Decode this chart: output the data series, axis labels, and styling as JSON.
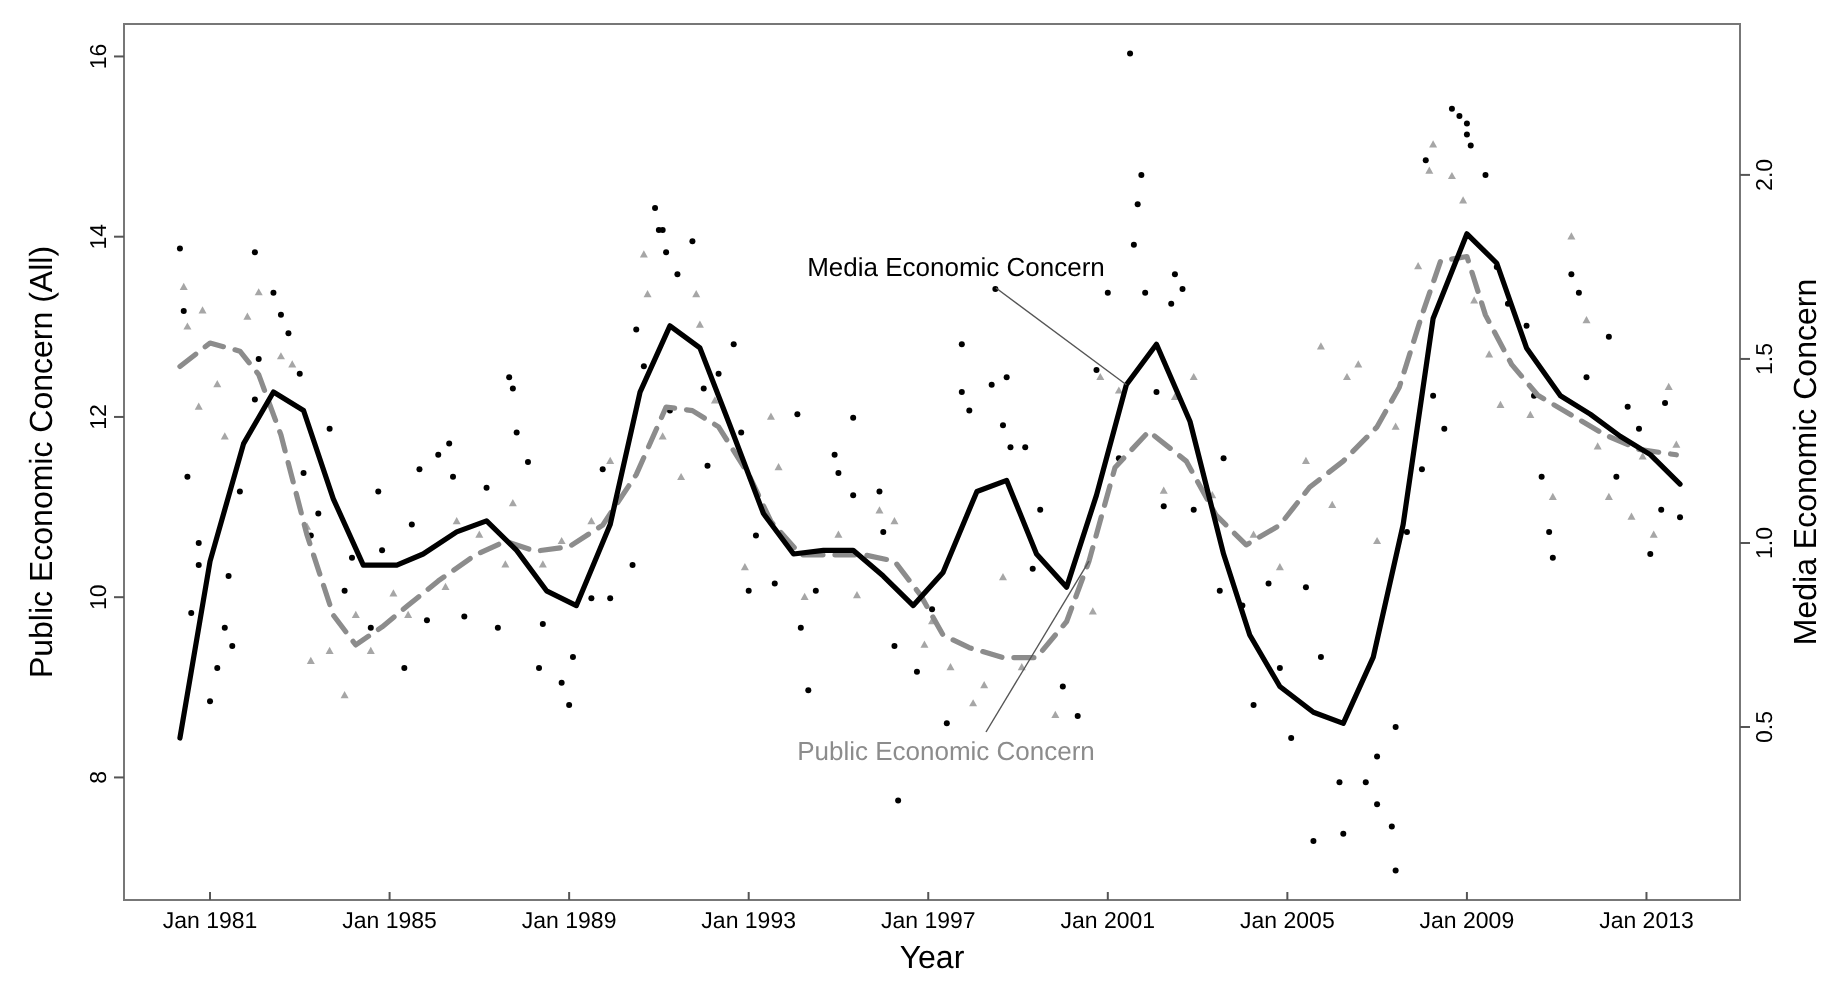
{
  "chart_data": {
    "type": "line",
    "xlabel": "Year",
    "ylabel": "Public Economic Concern (All)",
    "y2label": "Media Economic Concern",
    "xlim": [
      "1979-02",
      "2015-02"
    ],
    "xticks": [
      {
        "value": "1981-01",
        "label": "Jan 1981"
      },
      {
        "value": "1985-01",
        "label": "Jan 1985"
      },
      {
        "value": "1989-01",
        "label": "Jan 1989"
      },
      {
        "value": "1993-01",
        "label": "Jan 1993"
      },
      {
        "value": "1997-01",
        "label": "Jan 1997"
      },
      {
        "value": "2001-01",
        "label": "Jan 2001"
      },
      {
        "value": "2005-01",
        "label": "Jan 2005"
      },
      {
        "value": "2009-01",
        "label": "Jan 2009"
      },
      {
        "value": "2013-01",
        "label": "Jan 2013"
      }
    ],
    "ylim": [
      6.64,
      16.36
    ],
    "yticks": [
      8,
      10,
      12,
      14,
      16
    ],
    "y2lim": [
      0.03,
      2.41
    ],
    "y2ticks": [
      {
        "value": 0.5,
        "label": "0.5"
      },
      {
        "value": 1,
        "label": "1.0"
      },
      {
        "value": 1.5,
        "label": "1.5"
      },
      {
        "value": 2,
        "label": "2.0"
      }
    ],
    "series": [
      {
        "type": "scatter",
        "axis": "y",
        "marker": "triangle",
        "color": "#a6a6a6",
        "x": [
          "1980-06",
          "1980-07",
          "1980-10",
          "1980-11",
          "1981-03",
          "1981-05",
          "1981-11",
          "1982-02",
          "1982-08",
          "1982-11",
          "1983-03",
          "1983-04",
          "1983-09",
          "1984-01",
          "1984-04",
          "1984-08",
          "1985-02",
          "1985-06",
          "1986-04",
          "1986-07",
          "1987-01",
          "1987-08",
          "1987-10",
          "1988-06",
          "1988-11",
          "1989-07",
          "1989-12",
          "1990-09",
          "1990-10",
          "1991-02",
          "1991-07",
          "1991-11",
          "1991-12",
          "1992-04",
          "1992-12",
          "1993-07",
          "1993-09",
          "1994-04",
          "1995-01",
          "1995-06",
          "1995-12",
          "1996-04",
          "1996-12",
          "1997-02",
          "1997-07",
          "1998-01",
          "1998-04",
          "1998-09",
          "1999-02",
          "1999-11",
          "2000-09",
          "2000-11",
          "2001-04",
          "2002-04",
          "2002-07",
          "2002-12",
          "2003-05",
          "2004-04",
          "2004-11",
          "2005-06",
          "2005-10",
          "2006-01",
          "2006-05",
          "2006-08",
          "2007-01",
          "2007-06",
          "2007-12",
          "2008-03",
          "2008-04",
          "2008-09",
          "2008-12",
          "2009-03",
          "2009-07",
          "2009-10",
          "2010-06",
          "2010-12",
          "2011-05",
          "2011-09",
          "2011-12",
          "2012-03",
          "2012-09",
          "2012-12",
          "2013-03",
          "2013-07",
          "2013-09"
        ],
        "values": [
          13.44,
          13.0,
          12.11,
          13.18,
          12.36,
          11.78,
          13.11,
          13.38,
          12.67,
          12.58,
          10.78,
          9.29,
          9.4,
          8.91,
          9.8,
          9.4,
          10.04,
          9.8,
          10.11,
          10.84,
          10.69,
          10.36,
          11.04,
          10.36,
          10.62,
          10.84,
          11.51,
          13.8,
          13.36,
          11.78,
          11.33,
          13.36,
          13.02,
          12.18,
          10.33,
          12.0,
          11.44,
          10.0,
          10.69,
          10.02,
          10.96,
          10.84,
          9.47,
          9.73,
          9.22,
          8.82,
          9.02,
          10.22,
          9.22,
          8.69,
          9.84,
          12.44,
          12.29,
          11.18,
          12.22,
          12.44,
          11.13,
          10.69,
          10.33,
          11.51,
          12.78,
          11.02,
          12.44,
          12.58,
          10.62,
          11.89,
          13.67,
          14.73,
          15.02,
          14.67,
          14.4,
          13.29,
          12.69,
          12.13,
          12.02,
          11.11,
          14.0,
          13.07,
          11.67,
          11.11,
          10.89,
          11.56,
          10.69,
          12.33,
          11.69
        ]
      },
      {
        "type": "scatter",
        "axis": "y2",
        "marker": "circle",
        "color": "#000000",
        "x": [
          "1980-05",
          "1980-06",
          "1980-07",
          "1980-08",
          "1980-10",
          "1980-10",
          "1981-01",
          "1981-03",
          "1981-05",
          "1981-06",
          "1981-07",
          "1981-09",
          "1982-01",
          "1982-01",
          "1982-02",
          "1982-06",
          "1982-08",
          "1982-10",
          "1983-01",
          "1983-02",
          "1983-04",
          "1983-06",
          "1983-09",
          "1984-01",
          "1984-03",
          "1984-08",
          "1984-10",
          "1984-11",
          "1985-05",
          "1985-07",
          "1985-09",
          "1985-11",
          "1986-02",
          "1986-05",
          "1986-06",
          "1986-09",
          "1987-03",
          "1987-06",
          "1987-09",
          "1987-10",
          "1987-11",
          "1988-02",
          "1988-05",
          "1988-06",
          "1988-11",
          "1989-01",
          "1989-02",
          "1989-07",
          "1989-10",
          "1989-12",
          "1990-06",
          "1990-07",
          "1990-09",
          "1990-12",
          "1991-01",
          "1991-02",
          "1991-03",
          "1991-04",
          "1991-06",
          "1991-10",
          "1992-01",
          "1992-02",
          "1992-05",
          "1992-09",
          "1992-11",
          "1993-01",
          "1993-03",
          "1993-08",
          "1994-02",
          "1994-03",
          "1994-05",
          "1994-07",
          "1994-12",
          "1995-01",
          "1995-05",
          "1995-05",
          "1995-12",
          "1996-01",
          "1996-04",
          "1996-05",
          "1996-10",
          "1997-02",
          "1997-06",
          "1997-10",
          "1997-10",
          "1997-12",
          "1998-06",
          "1998-07",
          "1998-09",
          "1998-10",
          "1998-11",
          "1999-03",
          "1999-05",
          "1999-07",
          "2000-01",
          "2000-05",
          "2000-10",
          "2001-01",
          "2001-04",
          "2001-07",
          "2001-08",
          "2001-09",
          "2001-10",
          "2001-11",
          "2002-02",
          "2002-04",
          "2002-06",
          "2002-07",
          "2002-09",
          "2002-12",
          "2003-07",
          "2003-08",
          "2004-01",
          "2004-04",
          "2004-08",
          "2004-11",
          "2005-02",
          "2005-06",
          "2005-08",
          "2005-10",
          "2006-03",
          "2006-04",
          "2006-10",
          "2007-01",
          "2007-01",
          "2007-05",
          "2007-06",
          "2007-06",
          "2007-09",
          "2008-01",
          "2008-02",
          "2008-04",
          "2008-07",
          "2008-09",
          "2008-11",
          "2009-01",
          "2009-01",
          "2009-02",
          "2009-06",
          "2009-09",
          "2009-12",
          "2010-05",
          "2010-07",
          "2010-09",
          "2010-11",
          "2010-12",
          "2011-05",
          "2011-07",
          "2011-09",
          "2012-03",
          "2012-05",
          "2012-08",
          "2012-11",
          "2013-02",
          "2013-05",
          "2013-06",
          "2013-10"
        ],
        "values": [
          1.8,
          1.63,
          1.18,
          0.81,
          0.94,
          1.0,
          0.57,
          0.66,
          0.77,
          0.91,
          0.72,
          1.14,
          1.79,
          1.39,
          1.5,
          1.68,
          1.62,
          1.57,
          1.46,
          1.19,
          1.02,
          1.08,
          1.31,
          0.87,
          0.96,
          0.77,
          1.14,
          0.98,
          0.66,
          1.05,
          1.2,
          0.79,
          1.24,
          1.27,
          1.18,
          0.8,
          1.15,
          0.77,
          1.45,
          1.42,
          1.3,
          1.22,
          0.66,
          0.78,
          0.62,
          0.56,
          0.69,
          0.85,
          1.2,
          0.85,
          0.94,
          1.58,
          1.48,
          1.91,
          1.85,
          1.85,
          1.79,
          1.36,
          1.73,
          1.82,
          1.42,
          1.21,
          1.46,
          1.54,
          1.3,
          0.87,
          1.02,
          0.89,
          1.35,
          0.77,
          0.6,
          0.87,
          1.24,
          1.19,
          1.34,
          1.13,
          1.14,
          1.03,
          0.72,
          0.3,
          0.65,
          0.82,
          0.51,
          1.54,
          1.41,
          1.36,
          1.43,
          1.69,
          1.32,
          1.45,
          1.26,
          1.26,
          0.93,
          1.09,
          0.61,
          0.53,
          1.47,
          1.68,
          1.23,
          2.33,
          1.81,
          1.92,
          2.0,
          1.68,
          1.41,
          1.1,
          1.65,
          1.73,
          1.69,
          1.09,
          0.87,
          1.23,
          0.83,
          0.56,
          0.89,
          0.66,
          0.47,
          0.88,
          0.19,
          0.69,
          0.35,
          0.21,
          0.35,
          0.42,
          0.29,
          0.23,
          0.11,
          0.5,
          1.03,
          1.2,
          2.04,
          1.4,
          1.31,
          2.18,
          2.16,
          2.14,
          2.11,
          2.08,
          2.0,
          1.75,
          1.65,
          1.59,
          1.4,
          1.18,
          1.03,
          0.96,
          1.73,
          1.68,
          1.45,
          1.56,
          1.18,
          1.37,
          1.31,
          0.97,
          1.09,
          1.38,
          1.07
        ]
      },
      {
        "axis": "y",
        "name": "Public Economic Concern",
        "line_style": "dashed",
        "color": "#8c8c8c",
        "x": [
          "1980-05",
          "1981-01",
          "1981-09",
          "1982-02",
          "1982-08",
          "1983-03",
          "1983-10",
          "1984-04",
          "1984-11",
          "1985-06",
          "1986-02",
          "1986-12",
          "1987-08",
          "1988-04",
          "1989-01",
          "1989-10",
          "1990-07",
          "1991-03",
          "1991-10",
          "1992-05",
          "1993-01",
          "1993-07",
          "1994-03",
          "1994-11",
          "1995-08",
          "1996-04",
          "1996-11",
          "1997-05",
          "1997-12",
          "1998-09",
          "1999-06",
          "2000-02",
          "2000-08",
          "2001-03",
          "2001-12",
          "2002-10",
          "2003-06",
          "2004-02",
          "2004-11",
          "2005-07",
          "2006-04",
          "2007-01",
          "2007-07",
          "2008-01",
          "2008-06",
          "2009-01",
          "2009-06",
          "2010-01",
          "2010-08",
          "2011-05",
          "2012-02",
          "2012-11",
          "2013-09"
        ],
        "values": [
          12.56,
          12.82,
          12.73,
          12.47,
          11.8,
          10.69,
          9.8,
          9.47,
          9.67,
          9.91,
          10.18,
          10.47,
          10.62,
          10.51,
          10.56,
          10.8,
          11.36,
          12.11,
          12.07,
          11.89,
          11.36,
          10.84,
          10.47,
          10.47,
          10.47,
          10.4,
          10.02,
          9.58,
          9.44,
          9.33,
          9.33,
          9.73,
          10.4,
          11.44,
          11.84,
          11.51,
          10.91,
          10.58,
          10.8,
          11.22,
          11.51,
          11.89,
          12.33,
          13.13,
          13.73,
          13.78,
          13.13,
          12.58,
          12.24,
          12.02,
          11.8,
          11.64,
          11.58
        ]
      },
      {
        "axis": "y2",
        "name": "Media Economic Concern",
        "line_style": "solid",
        "color": "#000000",
        "x": [
          "1980-05",
          "1981-01",
          "1981-10",
          "1982-06",
          "1983-02",
          "1983-10",
          "1984-06",
          "1985-03",
          "1985-10",
          "1986-07",
          "1987-03",
          "1987-11",
          "1988-07",
          "1989-03",
          "1989-12",
          "1990-08",
          "1991-04",
          "1991-12",
          "1992-08",
          "1993-05",
          "1994-01",
          "1994-09",
          "1995-05",
          "1996-01",
          "1996-09",
          "1997-05",
          "1998-02",
          "1998-10",
          "1999-06",
          "2000-02",
          "2000-10",
          "2001-06",
          "2002-02",
          "2002-11",
          "2003-08",
          "2004-03",
          "2004-11",
          "2005-08",
          "2006-04",
          "2006-12",
          "2007-08",
          "2008-04",
          "2009-01",
          "2009-09",
          "2010-05",
          "2011-02",
          "2011-10",
          "2012-06",
          "2013-02",
          "2013-10"
        ],
        "values": [
          0.47,
          0.95,
          1.27,
          1.41,
          1.36,
          1.12,
          0.94,
          0.94,
          0.97,
          1.03,
          1.06,
          0.98,
          0.87,
          0.83,
          1.05,
          1.41,
          1.59,
          1.53,
          1.32,
          1.08,
          0.97,
          0.98,
          0.98,
          0.91,
          0.83,
          0.92,
          1.14,
          1.17,
          0.97,
          0.88,
          1.13,
          1.43,
          1.54,
          1.33,
          0.97,
          0.75,
          0.61,
          0.54,
          0.51,
          0.69,
          1.05,
          1.61,
          1.84,
          1.76,
          1.53,
          1.4,
          1.35,
          1.29,
          1.24,
          1.16
        ]
      }
    ]
  }
}
